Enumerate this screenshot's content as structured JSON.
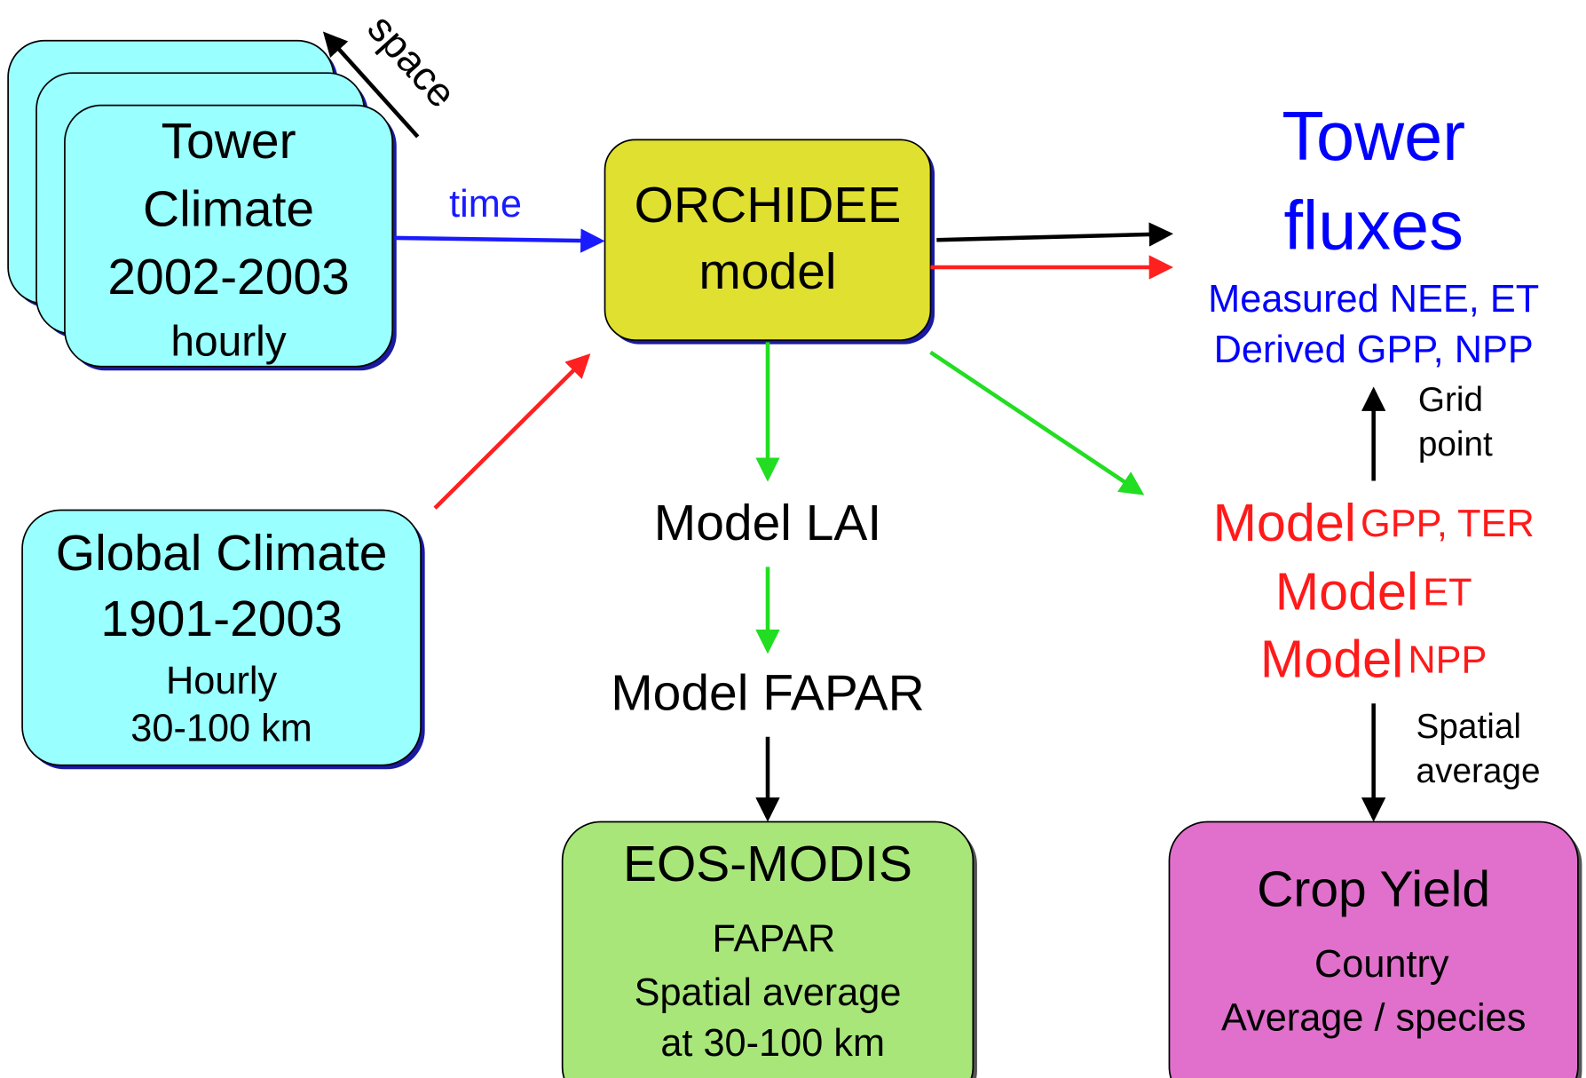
{
  "nodes": {
    "tower_climate": {
      "lines": [
        "Tower",
        "Climate",
        "2002-2003",
        "hourly"
      ]
    },
    "global_climate": {
      "lines": [
        "Global Climate",
        "1901-2003",
        "Hourly",
        "30-100 km"
      ]
    },
    "orchidee": {
      "lines": [
        "ORCHIDEE",
        "model"
      ]
    },
    "model_lai": {
      "label": "Model LAI"
    },
    "model_fapar": {
      "label": "Model FAPAR"
    },
    "eos_modis": {
      "lines": [
        "EOS-MODIS",
        "FAPAR",
        "Spatial average",
        "at 30-100 km"
      ]
    },
    "tower_fluxes": {
      "lines": [
        "Tower",
        "fluxes",
        "Measured NEE, ET",
        "Derived GPP, NPP"
      ]
    },
    "model_outputs": {
      "lines": [
        [
          "Model",
          "GPP, TER"
        ],
        [
          "Model",
          "ET"
        ],
        [
          "Model",
          "NPP"
        ]
      ]
    },
    "crop_yield": {
      "lines": [
        "Crop Yield",
        "Country",
        "Average / species"
      ]
    }
  },
  "edges": {
    "space": "space",
    "time": "time",
    "grid_point": [
      "Grid",
      "point"
    ],
    "spatial_average": [
      "Spatial",
      "average"
    ]
  }
}
